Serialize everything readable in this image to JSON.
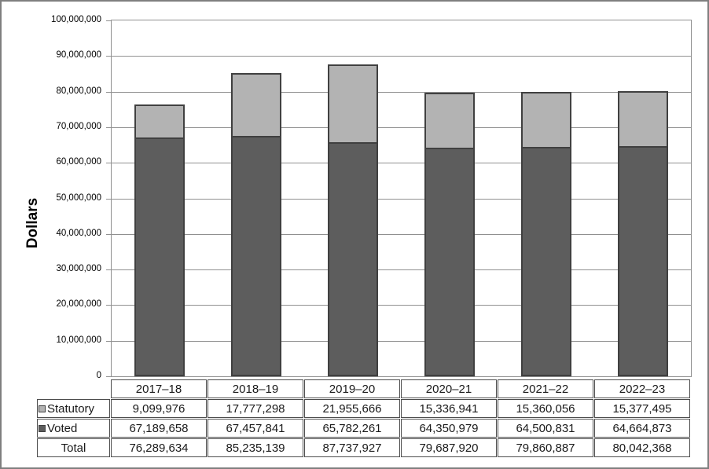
{
  "chart_data": {
    "type": "bar",
    "stacked": true,
    "title": "",
    "xlabel": "",
    "ylabel": "Dollars",
    "ylim": [
      0,
      100000000
    ],
    "grid": true,
    "legend_position": "table-left-keys",
    "categories": [
      "2017–18",
      "2018–19",
      "2019–20",
      "2020–21",
      "2021–22",
      "2022–23"
    ],
    "series": [
      {
        "name": "Statutory",
        "color": "#b3b3b3",
        "stack_order": "top",
        "values": [
          9099976,
          17777298,
          21955666,
          15336941,
          15360056,
          15377495
        ]
      },
      {
        "name": "Voted",
        "color": "#5d5d5d",
        "stack_order": "bottom",
        "values": [
          67189658,
          67457841,
          65782261,
          64350979,
          64500831,
          64664873
        ]
      }
    ],
    "totals": [
      76289634,
      85235139,
      87737927,
      79687920,
      79860887,
      80042368
    ],
    "y_tick_labels": [
      "0",
      "10,000,000",
      "20,000,000",
      "30,000,000",
      "40,000,000",
      "50,000,000",
      "60,000,000",
      "70,000,000",
      "80,000,000",
      "90,000,000",
      "100,000,000"
    ],
    "table": {
      "row_labels": [
        "Statutory",
        "Voted",
        "Total"
      ],
      "rows": [
        [
          "9,099,976",
          "17,777,298",
          "21,955,666",
          "15,336,941",
          "15,360,056",
          "15,377,495"
        ],
        [
          "67,189,658",
          "67,457,841",
          "65,782,261",
          "64,350,979",
          "64,500,831",
          "64,664,873"
        ],
        [
          "76,289,634",
          "85,235,139",
          "87,737,927",
          "79,687,920",
          "79,860,887",
          "80,042,368"
        ]
      ]
    }
  },
  "colors": {
    "statutory_fill": "#b3b3b3",
    "voted_fill": "#5d5d5d",
    "bar_border": "#404040",
    "gridline": "#909090",
    "outer_border": "#7f7f7f",
    "table_border": "#4d4d4d",
    "text": "#1a1a1a"
  }
}
